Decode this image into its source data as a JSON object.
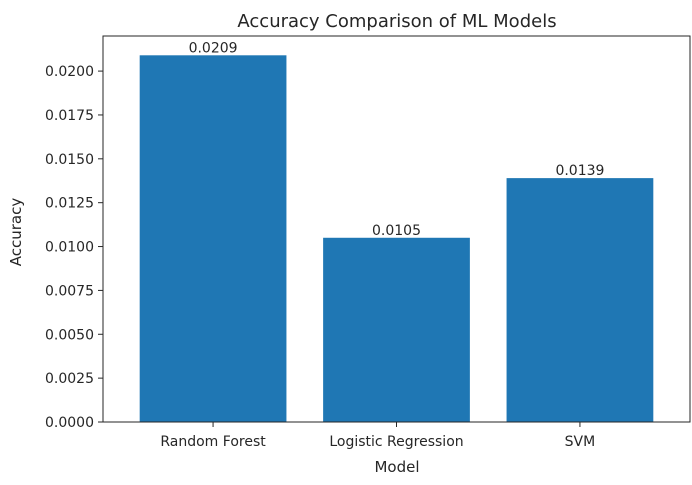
{
  "chart_data": {
    "type": "bar",
    "title": "Accuracy Comparison of ML Models",
    "xlabel": "Model",
    "ylabel": "Accuracy",
    "categories": [
      "Random Forest",
      "Logistic Regression",
      "SVM"
    ],
    "values": [
      0.0209,
      0.0105,
      0.0139
    ],
    "data_labels": [
      "0.0209",
      "0.0105",
      "0.0139"
    ],
    "ylim": [
      0,
      0.022
    ],
    "yticks": [
      0,
      0.0025,
      0.005,
      0.0075,
      0.01,
      0.0125,
      0.015,
      0.0175,
      0.02
    ],
    "ytick_labels": [
      "0.0000",
      "0.0025",
      "0.0050",
      "0.0075",
      "0.0100",
      "0.0125",
      "0.0150",
      "0.0175",
      "0.0200"
    ],
    "bar_color": "#1f77b4",
    "grid": false,
    "legend": "none"
  }
}
